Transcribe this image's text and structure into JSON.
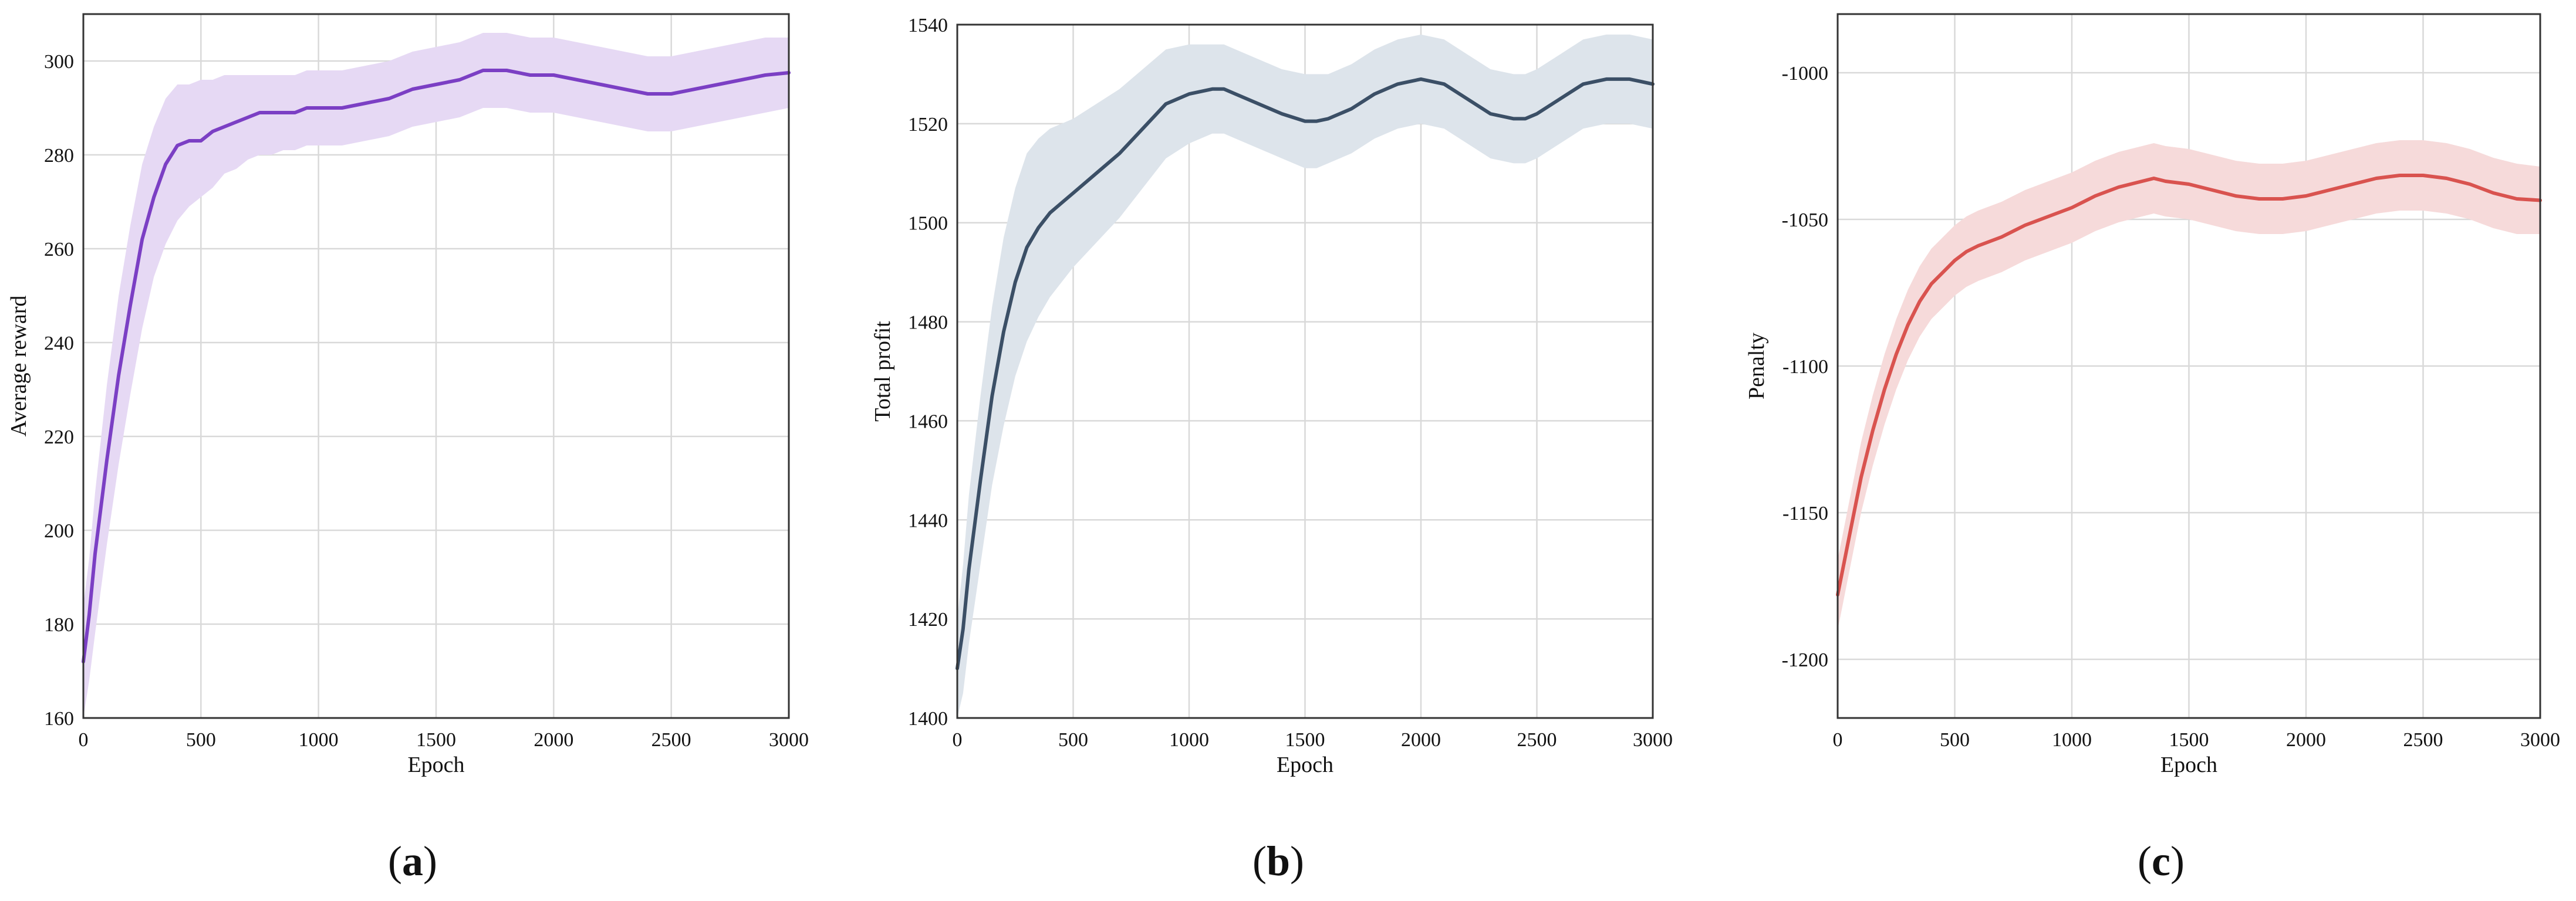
{
  "chart_data": [
    {
      "type": "line",
      "panel_label_parts": [
        "(",
        "a",
        ")"
      ],
      "title": "",
      "xlabel": "Epoch",
      "ylabel": "Average reward",
      "xlim": [
        0,
        3000
      ],
      "ylim": [
        160,
        310
      ],
      "xticks": [
        0,
        500,
        1000,
        1500,
        2000,
        2500,
        3000
      ],
      "yticks": [
        160,
        180,
        200,
        220,
        240,
        260,
        280,
        300
      ],
      "grid": true,
      "line_color": "#7b3fc4",
      "band_color": "#e6d9f4",
      "series": [
        {
          "x": [
            0,
            25,
            50,
            100,
            150,
            200,
            250,
            300,
            350,
            400,
            450,
            500,
            550,
            600,
            650,
            700,
            750,
            800,
            850,
            900,
            950,
            1000,
            1100,
            1200,
            1300,
            1400,
            1500,
            1600,
            1700,
            1800,
            1900,
            2000,
            2100,
            2200,
            2300,
            2400,
            2500,
            2600,
            2700,
            2800,
            2900,
            3000
          ],
          "y": [
            172,
            182,
            195,
            215,
            233,
            248,
            262,
            271,
            278,
            282,
            283,
            283,
            285,
            286,
            287,
            288,
            289,
            289,
            289,
            289,
            290,
            290,
            290,
            291,
            292,
            294,
            295,
            296,
            298,
            298,
            297,
            297,
            296,
            295,
            294,
            293,
            293,
            294,
            295,
            296,
            297,
            297.5
          ],
          "band_lower": [
            160,
            168,
            178,
            197,
            214,
            229,
            243,
            254,
            261,
            266,
            269,
            271,
            273,
            276,
            277,
            279,
            280,
            280,
            281,
            281,
            282,
            282,
            282,
            283,
            284,
            286,
            287,
            288,
            290,
            290,
            289,
            289,
            288,
            287,
            286,
            285,
            285,
            286,
            287,
            288,
            289,
            290
          ],
          "band_upper": [
            184,
            194,
            208,
            231,
            250,
            265,
            278,
            286,
            292,
            295,
            295,
            296,
            296,
            297,
            297,
            297,
            297,
            297,
            297,
            297,
            298,
            298,
            298,
            299,
            300,
            302,
            303,
            304,
            306,
            306,
            305,
            305,
            304,
            303,
            302,
            301,
            301,
            302,
            303,
            304,
            305,
            305
          ]
        }
      ]
    },
    {
      "type": "line",
      "panel_label_parts": [
        "(",
        "b",
        ")"
      ],
      "title": "",
      "xlabel": "Epoch",
      "ylabel": "Total profit",
      "xlim": [
        0,
        3000
      ],
      "ylim": [
        1400,
        1540
      ],
      "xticks": [
        0,
        500,
        1000,
        1500,
        2000,
        2500,
        3000
      ],
      "yticks": [
        1400,
        1420,
        1440,
        1460,
        1480,
        1500,
        1520,
        1540
      ],
      "grid": true,
      "line_color": "#3b4f66",
      "band_color": "#dde4eb",
      "series": [
        {
          "x": [
            0,
            25,
            50,
            100,
            150,
            200,
            250,
            300,
            350,
            400,
            450,
            500,
            600,
            700,
            800,
            900,
            1000,
            1100,
            1150,
            1200,
            1300,
            1400,
            1500,
            1550,
            1600,
            1700,
            1800,
            1900,
            2000,
            2100,
            2200,
            2300,
            2400,
            2450,
            2500,
            2600,
            2700,
            2800,
            2900,
            3000
          ],
          "y": [
            1410,
            1418,
            1430,
            1448,
            1465,
            1478,
            1488,
            1495,
            1499,
            1502,
            1504,
            1506,
            1510,
            1514,
            1519,
            1524,
            1526,
            1527,
            1527,
            1526,
            1524,
            1522,
            1520.5,
            1520.5,
            1521,
            1523,
            1526,
            1528,
            1529,
            1528,
            1525,
            1522,
            1521,
            1521,
            1522,
            1525,
            1528,
            1529,
            1529,
            1528
          ],
          "band_lower": [
            1400,
            1405,
            1415,
            1431,
            1447,
            1459,
            1469,
            1476,
            1481,
            1485,
            1488,
            1491,
            1496,
            1501,
            1507,
            1513,
            1516,
            1518,
            1518,
            1517,
            1515,
            1513,
            1511,
            1511,
            1512,
            1514,
            1517,
            1519,
            1520,
            1519,
            1516,
            1513,
            1512,
            1512,
            1513,
            1516,
            1519,
            1520,
            1520,
            1519
          ],
          "band_upper": [
            1420,
            1431,
            1445,
            1465,
            1483,
            1497,
            1507,
            1514,
            1517,
            1519,
            1520,
            1521,
            1524,
            1527,
            1531,
            1535,
            1536,
            1536,
            1536,
            1535,
            1533,
            1531,
            1530,
            1530,
            1530,
            1532,
            1535,
            1537,
            1538,
            1537,
            1534,
            1531,
            1530,
            1530,
            1531,
            1534,
            1537,
            1538,
            1538,
            1537
          ]
        }
      ]
    },
    {
      "type": "line",
      "panel_label_parts": [
        "(",
        "c",
        ")"
      ],
      "title": "",
      "xlabel": "Epoch",
      "ylabel": "Penalty",
      "xlim": [
        0,
        3000
      ],
      "ylim": [
        -1220,
        -980
      ],
      "xticks": [
        0,
        500,
        1000,
        1500,
        2000,
        2500,
        3000
      ],
      "yticks": [
        -1200,
        -1150,
        -1100,
        -1050,
        -1000
      ],
      "grid": true,
      "line_color": "#d9534f",
      "band_color": "#f6dada",
      "series": [
        {
          "x": [
            0,
            25,
            50,
            100,
            150,
            200,
            250,
            300,
            350,
            400,
            450,
            500,
            550,
            600,
            700,
            800,
            900,
            1000,
            1100,
            1200,
            1300,
            1350,
            1400,
            1500,
            1600,
            1700,
            1800,
            1900,
            2000,
            2100,
            2200,
            2300,
            2400,
            2500,
            2600,
            2700,
            2800,
            2900,
            3000
          ],
          "y": [
            -1178,
            -1168,
            -1158,
            -1138,
            -1122,
            -1108,
            -1096,
            -1086,
            -1078,
            -1072,
            -1068,
            -1064,
            -1061,
            -1059,
            -1056,
            -1052,
            -1049,
            -1046,
            -1042,
            -1039,
            -1037,
            -1036,
            -1037,
            -1038,
            -1040,
            -1042,
            -1043,
            -1043,
            -1042,
            -1040,
            -1038,
            -1036,
            -1035,
            -1035,
            -1036,
            -1038,
            -1041,
            -1043,
            -1043.5
          ],
          "band_lower": [
            -1190,
            -1180,
            -1170,
            -1150,
            -1134,
            -1120,
            -1108,
            -1098,
            -1090,
            -1084,
            -1080,
            -1076,
            -1073,
            -1071,
            -1068,
            -1064,
            -1061,
            -1058,
            -1054,
            -1051,
            -1049,
            -1048,
            -1049,
            -1050,
            -1052,
            -1054,
            -1055,
            -1055,
            -1054,
            -1052,
            -1050,
            -1048,
            -1047,
            -1047,
            -1048,
            -1050,
            -1053,
            -1055,
            -1055
          ],
          "band_upper": [
            -1166,
            -1156,
            -1146,
            -1126,
            -1110,
            -1096,
            -1084,
            -1074,
            -1066,
            -1060,
            -1056,
            -1052,
            -1049,
            -1047,
            -1044,
            -1040,
            -1037,
            -1034,
            -1030,
            -1027,
            -1025,
            -1024,
            -1025,
            -1026,
            -1028,
            -1030,
            -1031,
            -1031,
            -1030,
            -1028,
            -1026,
            -1024,
            -1023,
            -1023,
            -1024,
            -1026,
            -1029,
            -1031,
            -1032
          ]
        }
      ]
    }
  ]
}
